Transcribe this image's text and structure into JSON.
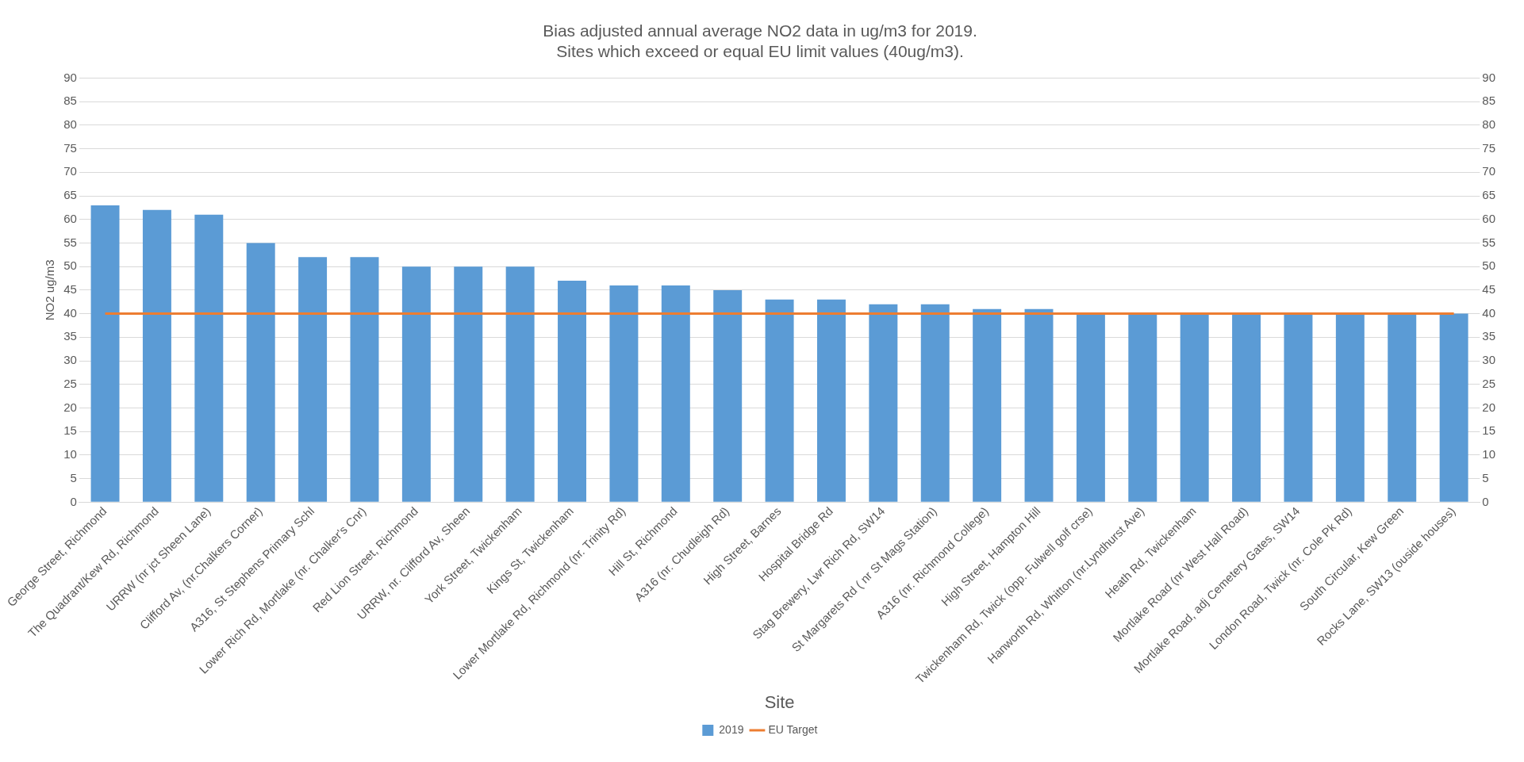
{
  "chart_data": {
    "type": "bar",
    "title": "Bias adjusted annual average NO2 data in ug/m3 for 2019.\nSites which exceed or equal EU limit values (40ug/m3).",
    "xlabel": "Site",
    "ylabel": "NO2 ug/m3",
    "categories": [
      "George Street, Richmond",
      "The Quadrant/Kew Rd, Richmond",
      "URRW (nr jct Sheen Lane)",
      "Clifford Av, (nr.Chalkers Corner)",
      "A316, St Stephens Primary Schl",
      "Lower Rich Rd, Mortlake (nr. Chalker's Cnr)",
      "Red Lion Street, Richmond",
      "URRW, nr. Clifford Av, Sheen",
      "York Street, Twickenham",
      "Kings St, Twickenham",
      "Lower Mortlake Rd, Richmond (nr. Trinity Rd)",
      "Hill St, Richmond",
      "A316 (nr. Chudleigh Rd)",
      "High Street, Barnes",
      "Hospital Bridge Rd",
      "Stag Brewery, Lwr Rich Rd, SW14",
      "St Margarets Rd ( nr St Mags Station)",
      "A316 (nr. Richmond College)",
      "High Street, Hampton Hill",
      "Twickenham Rd, Twick (opp. Fulwell golf crse)",
      "Hanworth Rd, Whitton (nr.Lyndhurst Ave)",
      "Heath Rd, Twickenham",
      "Mortlake Road (nr West Hall Road)",
      "Mortlake Road, adj Cemetery Gates, SW14",
      "London Road, Twick (nr. Cole Pk Rd)",
      "South Circular, Kew Green",
      "Rocks Lane, SW13 (ouside houses)"
    ],
    "series": [
      {
        "name": "2019",
        "color": "#5b9bd5",
        "values": [
          63,
          62,
          61,
          55,
          52,
          52,
          50,
          50,
          50,
          47,
          46,
          46,
          45,
          43,
          43,
          42,
          42,
          41,
          41,
          40,
          40,
          40,
          40,
          40,
          40,
          40,
          40
        ]
      },
      {
        "name": "EU Target",
        "type": "line",
        "color": "#ed7d31",
        "values": [
          40,
          40,
          40,
          40,
          40,
          40,
          40,
          40,
          40,
          40,
          40,
          40,
          40,
          40,
          40,
          40,
          40,
          40,
          40,
          40,
          40,
          40,
          40,
          40,
          40,
          40,
          40
        ]
      }
    ],
    "ylim": [
      0,
      90
    ],
    "yticks": [
      0,
      5,
      10,
      15,
      20,
      25,
      30,
      35,
      40,
      45,
      50,
      55,
      60,
      65,
      70,
      75,
      80,
      85,
      90
    ],
    "y2lim": [
      0,
      90
    ],
    "y2ticks": [
      0,
      5,
      10,
      15,
      20,
      25,
      30,
      35,
      40,
      45,
      50,
      55,
      60,
      65,
      70,
      75,
      80,
      85,
      90
    ],
    "grid": "y",
    "legend": "bottom",
    "marker": "none"
  }
}
